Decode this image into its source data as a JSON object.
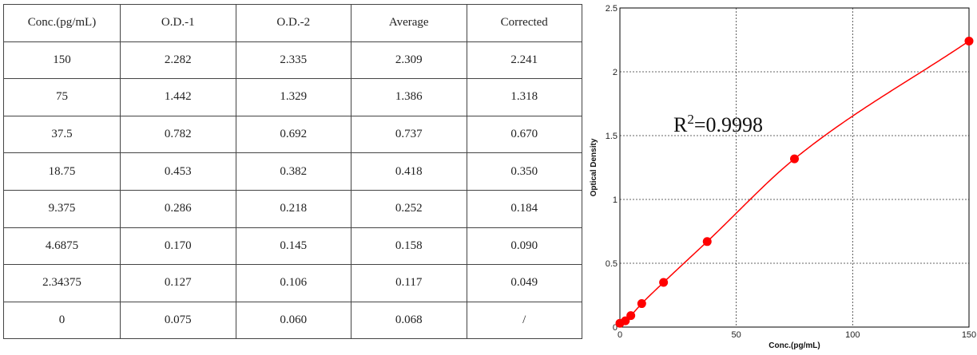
{
  "table": {
    "headers": [
      "Conc.(pg/mL)",
      "O.D.-1",
      "O.D.-2",
      "Average",
      "Corrected"
    ],
    "rows": [
      [
        "150",
        "2.282",
        "2.335",
        "2.309",
        "2.241"
      ],
      [
        "75",
        "1.442",
        "1.329",
        "1.386",
        "1.318"
      ],
      [
        "37.5",
        "0.782",
        "0.692",
        "0.737",
        "0.670"
      ],
      [
        "18.75",
        "0.453",
        "0.382",
        "0.418",
        "0.350"
      ],
      [
        "9.375",
        "0.286",
        "0.218",
        "0.252",
        "0.184"
      ],
      [
        "4.6875",
        "0.170",
        "0.145",
        "0.158",
        "0.090"
      ],
      [
        "2.34375",
        "0.127",
        "0.106",
        "0.117",
        "0.049"
      ],
      [
        "0",
        "0.075",
        "0.060",
        "0.068",
        "/"
      ]
    ]
  },
  "chart_data": {
    "type": "scatter",
    "xlabel": "Conc.(pg/mL)",
    "ylabel": "Optical Density",
    "xlim": [
      0,
      150
    ],
    "ylim": [
      0,
      2.5
    ],
    "xticks": [
      0,
      50,
      100,
      150
    ],
    "yticks": [
      0,
      0.5,
      1,
      1.5,
      2,
      2.5
    ],
    "ytick_labels": [
      "0",
      "0.5",
      "1",
      "1.5",
      "2",
      "2.5"
    ],
    "grid": true,
    "annotation": {
      "base": "R",
      "superscript": "2",
      "rest": "=0.9998"
    },
    "marker_color": "#ff0000",
    "curve_color": "#ff0000",
    "points": [
      {
        "x": 0,
        "y": 0.03
      },
      {
        "x": 2.34375,
        "y": 0.049
      },
      {
        "x": 4.6875,
        "y": 0.09
      },
      {
        "x": 9.375,
        "y": 0.184
      },
      {
        "x": 18.75,
        "y": 0.35
      },
      {
        "x": 37.5,
        "y": 0.67
      },
      {
        "x": 75,
        "y": 1.318
      },
      {
        "x": 150,
        "y": 2.241
      }
    ]
  }
}
